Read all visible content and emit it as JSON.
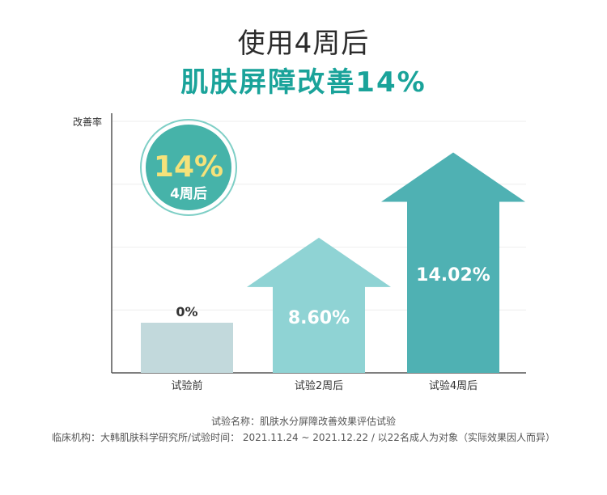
{
  "header": {
    "title": "使用4周后",
    "headline": "肌肤屏障改善14%"
  },
  "colors": {
    "accent": "#1aa39a",
    "bar_0": "#c2d9dc",
    "bar_1": "#8fd3d4",
    "bar_2": "#4fb1b3",
    "badge_fill": "#46b3a9",
    "badge_value": "#f5e27a",
    "axis": "#555555",
    "grid": "#eeeeee"
  },
  "badge": {
    "value": "14%",
    "label": "4周后"
  },
  "chart_data": {
    "type": "bar",
    "ylabel": "改善率",
    "xlabel": "",
    "ylim": [
      0,
      16
    ],
    "grid": true,
    "categories": [
      "试验前",
      "试验2周后",
      "试验4周后"
    ],
    "values": [
      0,
      8.6,
      14.02
    ],
    "value_labels": [
      "0%",
      "8.60%",
      "14.02%"
    ]
  },
  "footer": {
    "line1": "试验名称：肌肤水分屏障改善效果评估试验",
    "line2": "临床机构：大韩肌肤科学研究所/试验时间： 2021.11.24 ~ 2021.12.22 / 以22名成人为对象（实际效果因人而异）"
  }
}
